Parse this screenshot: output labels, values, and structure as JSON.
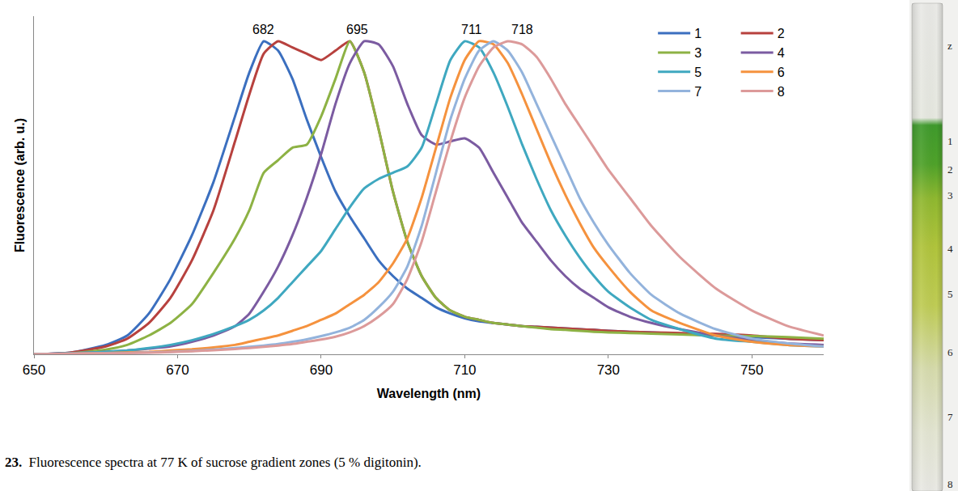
{
  "chart_data": {
    "type": "line",
    "x_label": "Wavelength (nm)",
    "y_label": "Fluorescence (arb. u.)",
    "x": [
      650,
      655,
      660,
      663,
      666,
      669,
      672,
      675,
      678,
      680,
      682,
      684,
      686,
      688,
      690,
      692,
      694,
      696,
      698,
      700,
      702,
      704,
      706,
      708,
      710,
      712,
      714,
      716,
      718,
      720,
      722,
      724,
      726,
      728,
      730,
      733,
      736,
      740,
      745,
      750,
      755,
      760
    ],
    "series": [
      {
        "name": "1",
        "color": "#3B6FBF",
        "values": [
          0,
          0.005,
          0.03,
          0.06,
          0.13,
          0.24,
          0.38,
          0.55,
          0.76,
          0.9,
          1.0,
          0.97,
          0.88,
          0.75,
          0.63,
          0.52,
          0.44,
          0.37,
          0.3,
          0.25,
          0.21,
          0.18,
          0.15,
          0.13,
          0.115,
          0.105,
          0.1,
          0.095,
          0.09,
          0.088,
          0.085,
          0.083,
          0.08,
          0.078,
          0.075,
          0.072,
          0.07,
          0.066,
          0.06,
          0.055,
          0.05,
          0.045
        ]
      },
      {
        "name": "2",
        "color": "#B7413E",
        "values": [
          0,
          0.005,
          0.025,
          0.05,
          0.1,
          0.18,
          0.3,
          0.46,
          0.68,
          0.83,
          0.96,
          1.0,
          0.98,
          0.96,
          0.94,
          0.97,
          1.0,
          0.9,
          0.72,
          0.52,
          0.36,
          0.25,
          0.18,
          0.14,
          0.12,
          0.11,
          0.1,
          0.095,
          0.09,
          0.088,
          0.085,
          0.083,
          0.08,
          0.078,
          0.075,
          0.072,
          0.07,
          0.068,
          0.065,
          0.06,
          0.05,
          0.045
        ]
      },
      {
        "name": "3",
        "color": "#8DB244",
        "values": [
          0,
          0.003,
          0.015,
          0.03,
          0.06,
          0.1,
          0.16,
          0.26,
          0.37,
          0.46,
          0.58,
          0.62,
          0.66,
          0.67,
          0.76,
          0.88,
          1.0,
          0.9,
          0.72,
          0.52,
          0.36,
          0.25,
          0.18,
          0.14,
          0.12,
          0.11,
          0.1,
          0.095,
          0.09,
          0.085,
          0.08,
          0.078,
          0.075,
          0.072,
          0.07,
          0.068,
          0.066,
          0.063,
          0.06,
          0.058,
          0.055,
          0.05
        ]
      },
      {
        "name": "4",
        "color": "#7B5BA1",
        "values": [
          0,
          0.003,
          0.008,
          0.012,
          0.018,
          0.025,
          0.04,
          0.06,
          0.09,
          0.13,
          0.2,
          0.28,
          0.38,
          0.5,
          0.64,
          0.8,
          0.93,
          1.0,
          0.99,
          0.92,
          0.8,
          0.7,
          0.67,
          0.68,
          0.69,
          0.66,
          0.58,
          0.5,
          0.42,
          0.36,
          0.3,
          0.25,
          0.21,
          0.18,
          0.15,
          0.12,
          0.1,
          0.08,
          0.06,
          0.045,
          0.035,
          0.03
        ]
      },
      {
        "name": "5",
        "color": "#3FA8C0",
        "values": [
          0,
          0.003,
          0.008,
          0.012,
          0.02,
          0.03,
          0.045,
          0.065,
          0.09,
          0.11,
          0.14,
          0.18,
          0.23,
          0.28,
          0.33,
          0.4,
          0.47,
          0.53,
          0.56,
          0.58,
          0.6,
          0.66,
          0.8,
          0.94,
          1.0,
          0.98,
          0.9,
          0.79,
          0.67,
          0.56,
          0.46,
          0.38,
          0.31,
          0.25,
          0.2,
          0.15,
          0.11,
          0.08,
          0.05,
          0.04,
          0.03,
          0.025
        ]
      },
      {
        "name": "6",
        "color": "#F5923E",
        "values": [
          0,
          0.002,
          0.004,
          0.006,
          0.008,
          0.012,
          0.016,
          0.022,
          0.03,
          0.04,
          0.05,
          0.06,
          0.075,
          0.09,
          0.11,
          0.13,
          0.16,
          0.19,
          0.23,
          0.29,
          0.37,
          0.5,
          0.66,
          0.82,
          0.94,
          1.0,
          0.99,
          0.93,
          0.83,
          0.72,
          0.61,
          0.51,
          0.42,
          0.34,
          0.28,
          0.2,
          0.14,
          0.1,
          0.06,
          0.04,
          0.03,
          0.025
        ]
      },
      {
        "name": "7",
        "color": "#93B3DC",
        "values": [
          0,
          0.002,
          0.003,
          0.004,
          0.006,
          0.008,
          0.011,
          0.015,
          0.02,
          0.024,
          0.028,
          0.033,
          0.04,
          0.048,
          0.058,
          0.07,
          0.085,
          0.11,
          0.15,
          0.2,
          0.28,
          0.41,
          0.58,
          0.75,
          0.88,
          0.97,
          1.0,
          0.97,
          0.9,
          0.8,
          0.7,
          0.6,
          0.5,
          0.42,
          0.35,
          0.26,
          0.19,
          0.13,
          0.08,
          0.05,
          0.035,
          0.025
        ]
      },
      {
        "name": "8",
        "color": "#DC9A9A",
        "values": [
          0,
          0.002,
          0.003,
          0.004,
          0.005,
          0.007,
          0.01,
          0.013,
          0.017,
          0.02,
          0.024,
          0.028,
          0.033,
          0.04,
          0.047,
          0.056,
          0.07,
          0.09,
          0.12,
          0.16,
          0.24,
          0.36,
          0.52,
          0.68,
          0.82,
          0.92,
          0.98,
          1.0,
          0.99,
          0.95,
          0.88,
          0.8,
          0.73,
          0.66,
          0.59,
          0.5,
          0.41,
          0.31,
          0.21,
          0.14,
          0.09,
          0.06
        ]
      }
    ],
    "xlim": [
      650,
      760
    ],
    "xticks": [
      650,
      670,
      690,
      710,
      730,
      750
    ],
    "ylim": [
      0,
      1.08
    ],
    "tick_labels": "x",
    "grid": false,
    "legend": "top right",
    "annotations": [
      {
        "text": "682",
        "x": 682,
        "y": 1.01
      },
      {
        "text": "695",
        "x": 695,
        "y": 1.01
      },
      {
        "text": "711",
        "x": 711,
        "y": 1.01
      },
      {
        "text": "718",
        "x": 718,
        "y": 1.01
      }
    ]
  },
  "caption": {
    "number": "23.",
    "text": "Fluorescence spectra at 77 K of sucrose gradient zones (5 % digitonin)."
  },
  "tube": {
    "labels": [
      "z",
      "1",
      "2",
      "3",
      "4",
      "5",
      "6",
      "7",
      "8"
    ]
  }
}
